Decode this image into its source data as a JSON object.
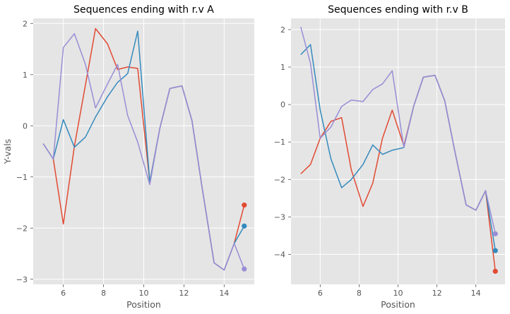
{
  "chart_data": [
    {
      "type": "line",
      "title": "Sequences ending with r.v A",
      "xlabel": "Position",
      "ylabel": "Y-vals",
      "xlim": [
        4.5,
        15.5
      ],
      "ylim": [
        -3.1,
        2.1
      ],
      "xticks": [
        6,
        8,
        10,
        12,
        14
      ],
      "yticks": [
        -3,
        -2,
        -1,
        0,
        1,
        2
      ],
      "grid": true,
      "x": [
        5.0,
        5.5,
        6.0,
        6.55,
        7.1,
        7.6,
        8.2,
        8.7,
        9.2,
        9.7,
        10.3,
        10.8,
        11.3,
        11.9,
        12.4,
        12.9,
        13.5,
        14.0,
        14.5,
        15.0
      ],
      "series": [
        {
          "color": "#e24a33",
          "values": [
            -0.35,
            -0.65,
            -1.92,
            -0.4,
            0.8,
            1.9,
            1.6,
            1.1,
            1.15,
            1.12,
            -1.1,
            -0.05,
            0.73,
            0.78,
            0.1,
            -1.2,
            -2.68,
            -2.82,
            -2.3,
            -1.55
          ],
          "end_marker": true
        },
        {
          "color": "#348abd",
          "values": [
            -0.35,
            -0.65,
            0.12,
            -0.42,
            -0.22,
            0.17,
            0.57,
            0.85,
            1.02,
            1.85,
            -1.1,
            -0.05,
            0.73,
            0.78,
            0.1,
            -1.2,
            -2.68,
            -2.82,
            -2.3,
            -1.96
          ],
          "end_marker": true
        },
        {
          "color": "#988ed5",
          "values": [
            -0.35,
            -0.65,
            1.53,
            1.8,
            1.2,
            0.35,
            0.82,
            1.2,
            0.2,
            -0.32,
            -1.15,
            -0.05,
            0.73,
            0.78,
            0.1,
            -1.2,
            -2.68,
            -2.82,
            -2.3,
            -2.8
          ],
          "end_marker": true
        }
      ]
    },
    {
      "type": "line",
      "title": "Sequences ending with r.v B",
      "xlabel": "Position",
      "ylabel": "",
      "xlim": [
        4.5,
        15.5
      ],
      "ylim": [
        -4.8,
        2.3
      ],
      "xticks": [
        6,
        8,
        10,
        12,
        14
      ],
      "yticks": [
        -4,
        -3,
        -2,
        -1,
        0,
        1,
        2
      ],
      "grid": true,
      "x": [
        5.0,
        5.5,
        6.0,
        6.55,
        7.1,
        7.6,
        8.2,
        8.7,
        9.2,
        9.7,
        10.3,
        10.8,
        11.3,
        11.9,
        12.4,
        12.9,
        13.5,
        14.0,
        14.5,
        15.0
      ],
      "series": [
        {
          "color": "#e24a33",
          "values": [
            -1.85,
            -1.6,
            -0.9,
            -0.45,
            -0.35,
            -1.75,
            -2.72,
            -2.1,
            -0.9,
            -0.15,
            -1.1,
            -0.05,
            0.73,
            0.78,
            0.1,
            -1.2,
            -2.68,
            -2.82,
            -2.3,
            -4.45
          ],
          "end_marker": true
        },
        {
          "color": "#348abd",
          "values": [
            1.33,
            1.6,
            -0.15,
            -1.45,
            -2.22,
            -2.0,
            -1.6,
            -1.08,
            -1.33,
            -1.22,
            -1.15,
            -0.05,
            0.73,
            0.78,
            0.1,
            -1.2,
            -2.68,
            -2.82,
            -2.3,
            -3.9
          ],
          "end_marker": true
        },
        {
          "color": "#988ed5",
          "values": [
            2.07,
            1.1,
            -0.9,
            -0.6,
            -0.05,
            0.12,
            0.08,
            0.4,
            0.55,
            0.9,
            -1.15,
            -0.05,
            0.73,
            0.78,
            0.1,
            -1.2,
            -2.68,
            -2.82,
            -2.3,
            -3.45
          ],
          "end_marker": true
        }
      ]
    }
  ]
}
